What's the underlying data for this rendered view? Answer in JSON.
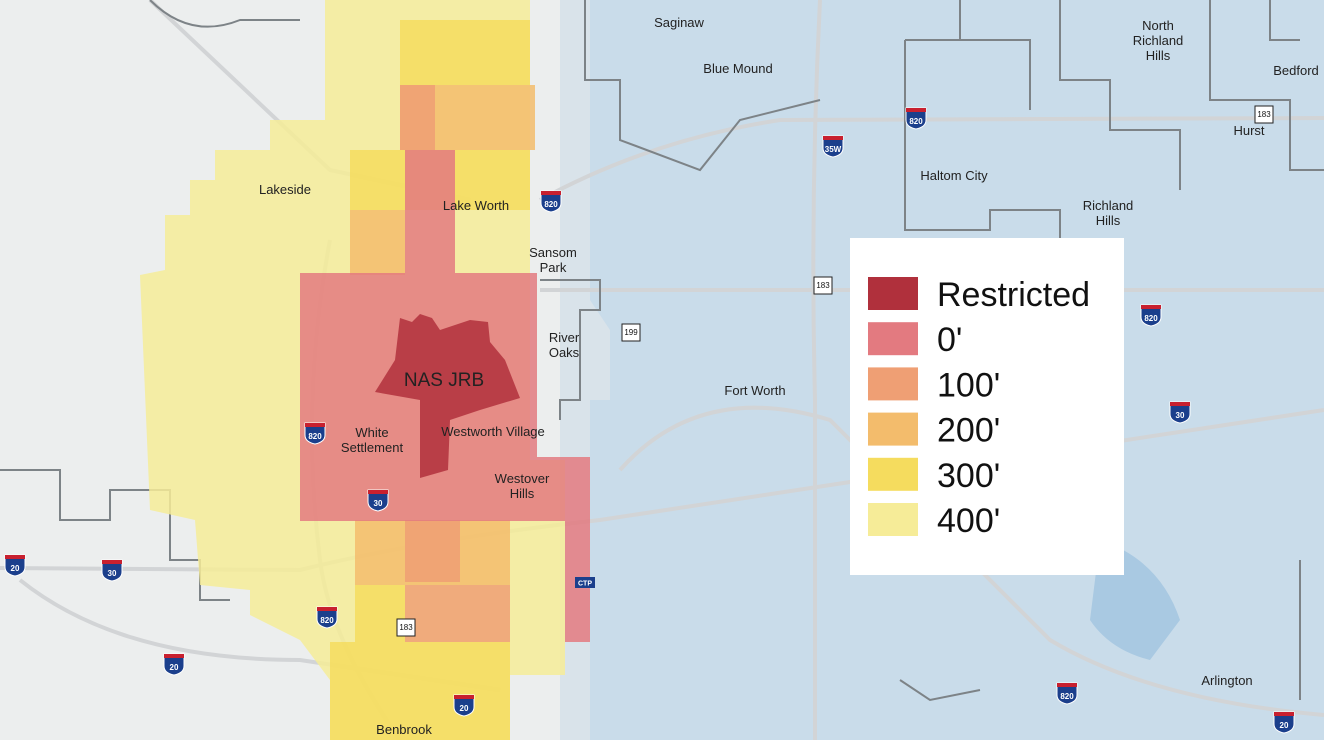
{
  "legend": {
    "items": [
      {
        "label": "Restricted",
        "color": "#b0303c"
      },
      {
        "label": "0'",
        "color": "#e37a80"
      },
      {
        "label": "100'",
        "color": "#ef9f74"
      },
      {
        "label": "200'",
        "color": "#f3bc6c"
      },
      {
        "label": "300'",
        "color": "#f5dc5e"
      },
      {
        "label": "400'",
        "color": "#f6ec98"
      }
    ]
  },
  "restricted_area": {
    "label": "NAS JRB"
  },
  "places": [
    [
      "Saginaw"
    ],
    [
      "Blue Mound"
    ],
    [
      "North",
      "Richland",
      "Hills"
    ],
    [
      "Bedford"
    ],
    [
      "Hurst"
    ],
    [
      "Haltom City"
    ],
    [
      "Richland",
      "Hills"
    ],
    [
      "Lakeside"
    ],
    [
      "Lake Worth"
    ],
    [
      "Sansom",
      "Park"
    ],
    [
      "River",
      "Oaks"
    ],
    [
      "Fort Worth"
    ],
    [
      "White",
      "Settlement"
    ],
    [
      "Westworth Village"
    ],
    [
      "Westover",
      "Hills"
    ],
    [
      "Arlington"
    ],
    [
      "Benbrook"
    ]
  ],
  "interstates": [
    "820",
    "35W",
    "820",
    "820",
    "30",
    "20",
    "30",
    "820",
    "20",
    "20",
    "820",
    "20",
    "820",
    "30"
  ],
  "state_routes": [
    "183",
    "183",
    "199",
    "183"
  ],
  "toll": "CTP"
}
